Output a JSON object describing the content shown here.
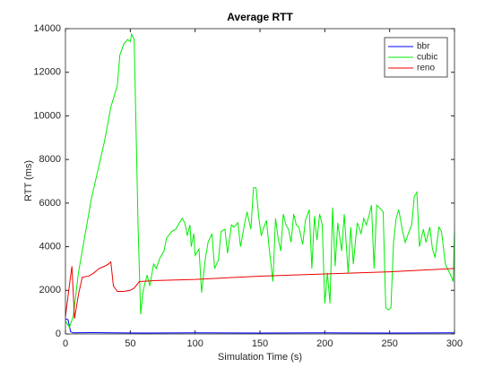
{
  "chart_data": {
    "type": "line",
    "title": "Average RTT",
    "x_label": "Simulation Time (s)",
    "y_label": "RTT (ms)",
    "xlim": [
      0,
      300
    ],
    "xticks": [
      0,
      50,
      100,
      150,
      200,
      250,
      300
    ],
    "ylim": [
      0,
      14000
    ],
    "yticks": [
      0,
      2000,
      4000,
      6000,
      8000,
      10000,
      12000,
      14000
    ],
    "legend": "upper right",
    "grid": false,
    "series": [
      {
        "name": "bbr",
        "color": "#0000ff",
        "x": [
          0,
          2,
          4,
          6,
          20,
          60,
          100,
          150,
          200,
          250,
          300
        ],
        "values": [
          700,
          650,
          100,
          50,
          60,
          40,
          50,
          40,
          50,
          40,
          50
        ]
      },
      {
        "name": "cubic",
        "color": "#00ee00",
        "x": [
          0,
          3,
          6,
          10,
          15,
          20,
          25,
          30,
          35,
          40,
          42,
          45,
          48,
          50,
          51,
          53,
          56,
          58,
          60,
          63,
          65,
          68,
          70,
          73,
          76,
          78,
          82,
          85,
          87,
          90,
          92,
          94,
          96,
          97,
          99,
          100,
          103,
          105,
          108,
          110,
          113,
          115,
          118,
          120,
          123,
          125,
          128,
          130,
          133,
          135,
          138,
          140,
          143,
          145,
          147,
          149,
          151,
          153,
          155,
          157,
          160,
          162,
          164,
          166,
          168,
          170,
          172,
          174,
          176,
          178,
          180,
          183,
          185,
          188,
          190,
          192,
          194,
          196,
          198,
          200,
          202,
          204,
          206,
          208,
          210,
          213,
          215,
          218,
          220,
          222,
          225,
          228,
          230,
          232,
          234,
          236,
          238,
          240,
          242,
          245,
          247,
          249,
          251,
          253,
          255,
          257,
          260,
          262,
          265,
          267,
          269,
          271,
          273,
          276,
          278,
          281,
          283,
          285,
          288,
          290,
          293,
          297,
          299,
          300
        ],
        "values": [
          600,
          300,
          800,
          2800,
          4500,
          6200,
          7500,
          8800,
          10400,
          11400,
          12800,
          13300,
          13500,
          13400,
          13750,
          13500,
          5000,
          900,
          2000,
          2700,
          2200,
          3200,
          3000,
          3500,
          3800,
          4400,
          4700,
          4800,
          5000,
          5300,
          5100,
          4500,
          5000,
          4000,
          4600,
          3600,
          3900,
          1900,
          3500,
          4200,
          4600,
          3000,
          3400,
          4700,
          4800,
          3700,
          5000,
          4900,
          5100,
          4000,
          5000,
          5600,
          4800,
          6700,
          6700,
          5400,
          4500,
          4900,
          5200,
          4000,
          2400,
          5300,
          4400,
          3800,
          5500,
          5000,
          4800,
          4200,
          5500,
          5000,
          4900,
          4100,
          5200,
          5700,
          3000,
          5400,
          4300,
          5500,
          5000,
          1400,
          2800,
          1400,
          5800,
          3100,
          5100,
          3800,
          5500,
          2800,
          4900,
          3200,
          5100,
          4600,
          5300,
          5000,
          5400,
          5900,
          3000,
          5900,
          5800,
          5600,
          1200,
          1100,
          1200,
          4200,
          5300,
          5700,
          4700,
          4200,
          4700,
          5000,
          6300,
          6500,
          4000,
          4800,
          4200,
          4900,
          3900,
          3500,
          4900,
          4700,
          3200,
          2700,
          2400,
          4700
        ]
      },
      {
        "name": "reno",
        "color": "#ee0000",
        "x": [
          0,
          3,
          5,
          7,
          10,
          13,
          18,
          22,
          26,
          30,
          33,
          35,
          37,
          40,
          45,
          50,
          53,
          57,
          70,
          100,
          150,
          200,
          250,
          300
        ],
        "values": [
          800,
          2200,
          3100,
          700,
          1800,
          2600,
          2650,
          2800,
          3000,
          3100,
          3200,
          3300,
          2200,
          1950,
          1950,
          2000,
          2100,
          2400,
          2450,
          2500,
          2650,
          2750,
          2850,
          3000
        ]
      }
    ]
  }
}
